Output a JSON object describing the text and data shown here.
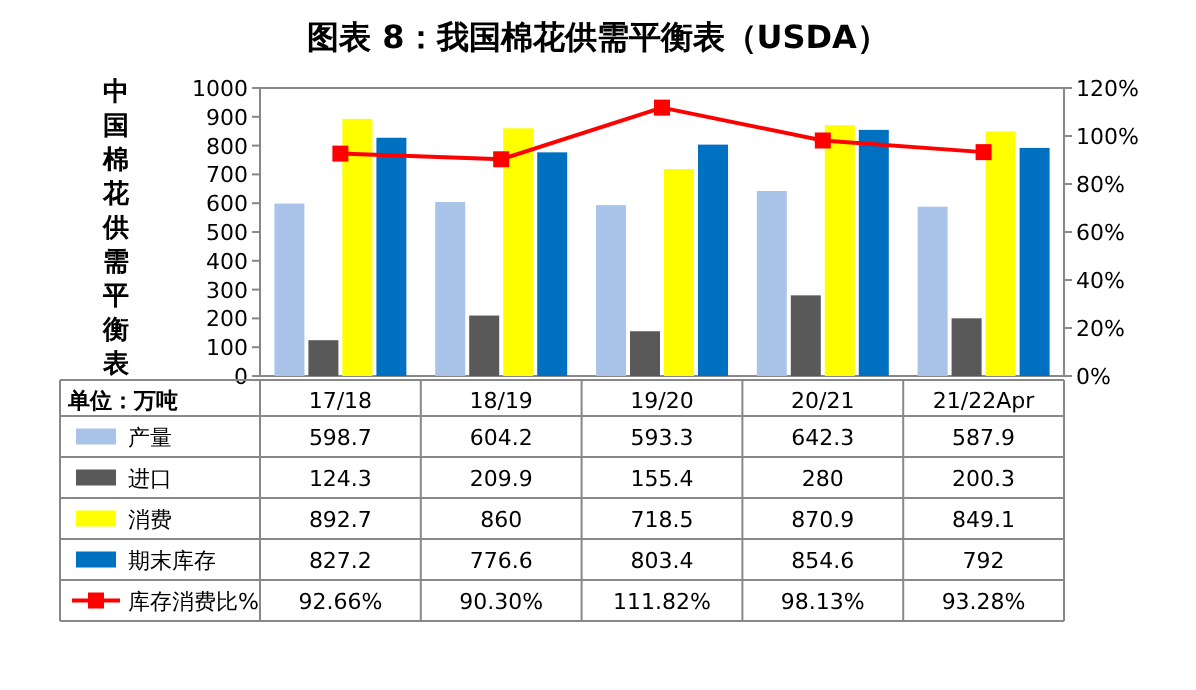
{
  "chart_data": {
    "type": "bar",
    "title": "图表 8：我国棉花供需平衡表（USDA）",
    "ylabel": "中国棉花供需平衡表",
    "annotations": [
      "单位：万吨"
    ],
    "categories": [
      "17/18",
      "18/19",
      "19/20",
      "20/21",
      "21/22Apr"
    ],
    "series": [
      {
        "name": "产量",
        "color": "#a9c4e8",
        "values": [
          598.7,
          604.2,
          593.3,
          642.3,
          587.9
        ],
        "value_labels": [
          "598.7",
          "604.2",
          "593.3",
          "642.3",
          "587.9"
        ]
      },
      {
        "name": "进口",
        "color": "#595959",
        "values": [
          124.3,
          209.9,
          155.4,
          280,
          200.3
        ],
        "value_labels": [
          "124.3",
          "209.9",
          "155.4",
          "280",
          "200.3"
        ]
      },
      {
        "name": "消费",
        "color": "#ffff00",
        "values": [
          892.7,
          860,
          718.5,
          870.9,
          849.1
        ],
        "value_labels": [
          "892.7",
          "860",
          "718.5",
          "870.9",
          "849.1"
        ]
      },
      {
        "name": "期末库存",
        "color": "#0070c0",
        "values": [
          827.2,
          776.6,
          803.4,
          854.6,
          792
        ],
        "value_labels": [
          "827.2",
          "776.6",
          "803.4",
          "854.6",
          "792"
        ]
      },
      {
        "name": "库存消费比%",
        "color": "#ff0000",
        "type": "line",
        "axis": "y2",
        "marker": "square",
        "values": [
          92.66,
          90.3,
          111.82,
          98.13,
          93.28
        ],
        "value_labels": [
          "92.66%",
          "90.30%",
          "111.82%",
          "98.13%",
          "93.28%"
        ]
      }
    ],
    "ylim": [
      0,
      1000
    ],
    "yticks": [
      0,
      100,
      200,
      300,
      400,
      500,
      600,
      700,
      800,
      900,
      1000
    ],
    "y2lim": [
      0,
      120
    ],
    "y2ticks": [
      {
        "value": 0,
        "label": "0%"
      },
      {
        "value": 20,
        "label": "20%"
      },
      {
        "value": 40,
        "label": "40%"
      },
      {
        "value": 60,
        "label": "60%"
      },
      {
        "value": 80,
        "label": "80%"
      },
      {
        "value": 100,
        "label": "100%"
      },
      {
        "value": 120,
        "label": "120%"
      }
    ],
    "grid": false,
    "legend": "bottom left"
  }
}
